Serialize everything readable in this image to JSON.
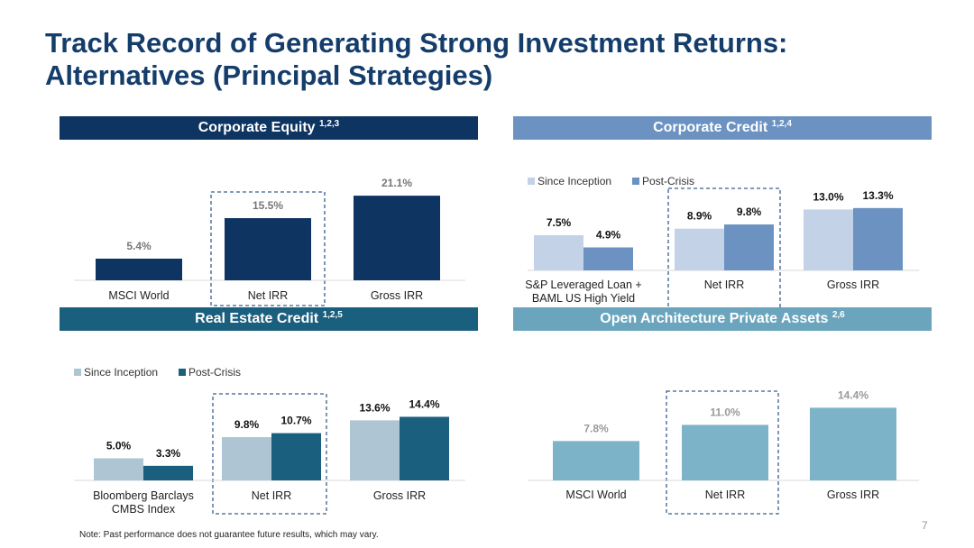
{
  "title": {
    "line1": "Track Record of Generating Strong Investment Returns:",
    "line2": "Alternatives (Principal Strategies)"
  },
  "footer": {
    "note": "Note: Past performance does not guarantee future results, which may vary.",
    "page_number": "7"
  },
  "colors": {
    "corporate_equity": "#0e3461",
    "corporate_credit_header": "#6b92c1",
    "corporate_credit_since": "#c3d2e6",
    "corporate_credit_post": "#6b92c1",
    "real_estate_header": "#1b5f7e",
    "real_estate_since": "#aec6d4",
    "real_estate_post": "#1b5f7e",
    "open_arch_header": "#6aa5bd",
    "open_arch_bar": "#7db3c8",
    "highlight_box": "#3a5f8c"
  },
  "chart_data": [
    {
      "id": "corporate-equity",
      "type": "bar",
      "title": "Corporate Equity",
      "title_sup": "1,2,3",
      "categories": [
        "MSCI World",
        "Net IRR",
        "Gross IRR"
      ],
      "series": [
        {
          "values": [
            5.4,
            15.5,
            21.1
          ]
        }
      ],
      "data_labels": [
        "5.4%",
        "15.5%",
        "21.1%"
      ],
      "highlighted_category": "Net IRR",
      "legend": []
    },
    {
      "id": "corporate-credit",
      "type": "bar",
      "title": "Corporate Credit",
      "title_sup": "1,2,4",
      "categories": [
        [
          "S&P Leveraged Loan +",
          "BAML US High Yield"
        ],
        [
          "Net IRR"
        ],
        [
          "Gross IRR"
        ]
      ],
      "series": [
        {
          "name": "Since Inception",
          "values": [
            7.5,
            8.9,
            13.0
          ],
          "labels": [
            "7.5%",
            "8.9%",
            "13.0%"
          ]
        },
        {
          "name": "Post-Crisis",
          "values": [
            4.9,
            9.8,
            13.3
          ],
          "labels": [
            "4.9%",
            "9.8%",
            "13.3%"
          ]
        }
      ],
      "highlighted_category": "Net IRR",
      "legend_position": "top-left"
    },
    {
      "id": "real-estate-credit",
      "type": "bar",
      "title": "Real Estate Credit",
      "title_sup": "1,2,5",
      "categories": [
        [
          "Bloomberg Barclays",
          "CMBS Index"
        ],
        [
          "Net IRR"
        ],
        [
          "Gross IRR"
        ]
      ],
      "series": [
        {
          "name": "Since Inception",
          "values": [
            5.0,
            9.8,
            13.6
          ],
          "labels": [
            "5.0%",
            "9.8%",
            "13.6%"
          ]
        },
        {
          "name": "Post-Crisis",
          "values": [
            3.3,
            10.7,
            14.4
          ],
          "labels": [
            "3.3%",
            "10.7%",
            "14.4%"
          ]
        }
      ],
      "highlighted_category": "Net IRR",
      "legend_position": "top-left"
    },
    {
      "id": "open-architecture",
      "type": "bar",
      "title": "Open Architecture Private Assets",
      "title_sup": "2,6",
      "categories": [
        "MSCI World",
        "Net IRR",
        "Gross IRR"
      ],
      "series": [
        {
          "values": [
            7.8,
            11.0,
            14.4
          ]
        }
      ],
      "data_labels": [
        "7.8%",
        "11.0%",
        "14.4%"
      ],
      "highlighted_category": "Net IRR",
      "legend": []
    }
  ]
}
